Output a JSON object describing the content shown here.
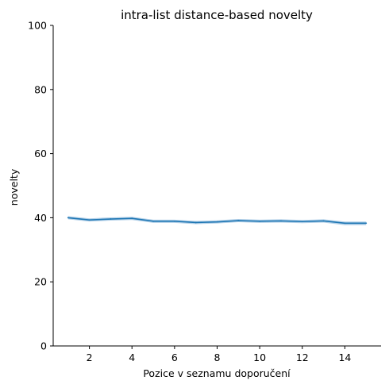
{
  "chart_data": {
    "type": "line",
    "title": "intra-list distance-based novelty",
    "xlabel": "Pozice v seznamu doporučení",
    "ylabel": "novelty",
    "xlim": [
      0.3,
      15.7
    ],
    "ylim": [
      0,
      100
    ],
    "x_ticks": [
      2,
      4,
      6,
      8,
      10,
      12,
      14
    ],
    "y_ticks": [
      0,
      20,
      40,
      60,
      80,
      100
    ],
    "grid": false,
    "series": [
      {
        "x": [
          1,
          2,
          3,
          4,
          5,
          6,
          7,
          8,
          9,
          10,
          11,
          12,
          13,
          14,
          15
        ],
        "values": [
          40.0,
          39.3,
          39.6,
          39.8,
          38.9,
          38.9,
          38.5,
          38.7,
          39.1,
          38.9,
          39.0,
          38.8,
          39.0,
          38.3,
          38.3
        ],
        "ci_lower": [
          39.5,
          38.8,
          39.1,
          39.3,
          38.4,
          38.4,
          38.0,
          38.2,
          38.6,
          38.4,
          38.5,
          38.3,
          38.5,
          37.7,
          37.7
        ],
        "ci_upper": [
          40.5,
          39.8,
          40.1,
          40.3,
          39.4,
          39.4,
          39.0,
          39.2,
          39.6,
          39.4,
          39.5,
          39.3,
          39.5,
          38.8,
          38.8
        ]
      }
    ],
    "colors": {
      "line": "#1f77b4",
      "band": "#a6c8e4"
    }
  }
}
